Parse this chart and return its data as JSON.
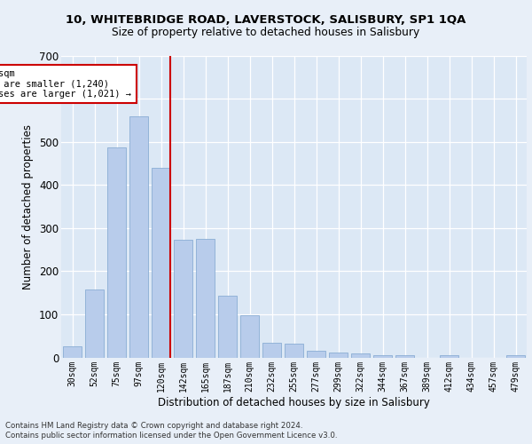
{
  "title1": "10, WHITEBRIDGE ROAD, LAVERSTOCK, SALISBURY, SP1 1QA",
  "title2": "Size of property relative to detached houses in Salisbury",
  "xlabel": "Distribution of detached houses by size in Salisbury",
  "ylabel": "Number of detached properties",
  "categories": [
    "30sqm",
    "52sqm",
    "75sqm",
    "97sqm",
    "120sqm",
    "142sqm",
    "165sqm",
    "187sqm",
    "210sqm",
    "232sqm",
    "255sqm",
    "277sqm",
    "299sqm",
    "322sqm",
    "344sqm",
    "367sqm",
    "389sqm",
    "412sqm",
    "434sqm",
    "457sqm",
    "479sqm"
  ],
  "values": [
    25,
    157,
    487,
    560,
    440,
    273,
    275,
    143,
    97,
    33,
    32,
    15,
    12,
    10,
    6,
    5,
    0,
    5,
    0,
    0,
    6
  ],
  "bar_color": "#b8cceb",
  "bar_edge_color": "#8aadd4",
  "vline_color": "#cc0000",
  "vline_x": 4.43,
  "annotation_box_color": "#ffffff",
  "annotation_box_edge_color": "#cc0000",
  "bg_color": "#e8eff8",
  "plot_bg_color": "#dce8f5",
  "footer1": "Contains HM Land Registry data © Crown copyright and database right 2024.",
  "footer2": "Contains public sector information licensed under the Open Government Licence v3.0.",
  "ylim": [
    0,
    700
  ],
  "yticks": [
    0,
    100,
    200,
    300,
    400,
    500,
    600,
    700
  ]
}
